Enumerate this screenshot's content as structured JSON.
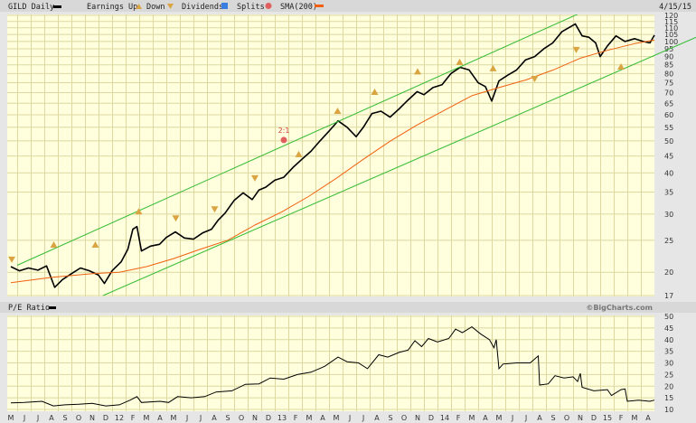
{
  "chart_data": [
    {
      "type": "line",
      "title": "GILD Daily",
      "date_label": "4/15/15",
      "legend": {
        "placement": "top",
        "items": [
          {
            "name": "GILD Daily",
            "color": "#000000",
            "symbol": "line"
          },
          {
            "name": "Earnings Up",
            "color": "#d9a441",
            "symbol": "triangle-up"
          },
          {
            "name": "Down",
            "color": "#d9a441",
            "symbol": "triangle-down"
          },
          {
            "name": "Dividends",
            "color": "#3a7fe0",
            "symbol": "square"
          },
          {
            "name": "Splits",
            "color": "#e06060",
            "symbol": "circle"
          },
          {
            "name": "SMA(200)",
            "color": "#f06010",
            "symbol": "line"
          }
        ]
      },
      "y_scale": "log",
      "ylim": [
        17,
        120
      ],
      "y_ticks": [
        17,
        20,
        25,
        30,
        35,
        40,
        45,
        50,
        55,
        60,
        65,
        70,
        75,
        80,
        85,
        90,
        95,
        100,
        105,
        110,
        115,
        120
      ],
      "grid": true,
      "series": [
        {
          "name": "GILD Daily",
          "color": "#000000",
          "points": [
            [
              "2011-05-01",
              20.8
            ],
            [
              "2011-05-20",
              20.2
            ],
            [
              "2011-06-10",
              20.6
            ],
            [
              "2011-07-01",
              20.3
            ],
            [
              "2011-07-20",
              20.9
            ],
            [
              "2011-08-08",
              18.0
            ],
            [
              "2011-08-25",
              19.0
            ],
            [
              "2011-09-15",
              19.8
            ],
            [
              "2011-10-05",
              20.6
            ],
            [
              "2011-10-25",
              20.2
            ],
            [
              "2011-11-15",
              19.6
            ],
            [
              "2011-11-28",
              18.5
            ],
            [
              "2011-12-15",
              20.2
            ],
            [
              "2012-01-05",
              21.5
            ],
            [
              "2012-01-20",
              23.5
            ],
            [
              "2012-02-01",
              27.0
            ],
            [
              "2012-02-10",
              27.5
            ],
            [
              "2012-02-20",
              23.2
            ],
            [
              "2012-03-10",
              24.0
            ],
            [
              "2012-03-30",
              24.3
            ],
            [
              "2012-04-15",
              25.5
            ],
            [
              "2012-05-05",
              26.5
            ],
            [
              "2012-05-25",
              25.4
            ],
            [
              "2012-06-15",
              25.2
            ],
            [
              "2012-07-05",
              26.3
            ],
            [
              "2012-07-25",
              27.0
            ],
            [
              "2012-08-10",
              28.8
            ],
            [
              "2012-08-25",
              30.2
            ],
            [
              "2012-09-15",
              33.0
            ],
            [
              "2012-10-05",
              34.8
            ],
            [
              "2012-10-25",
              33.2
            ],
            [
              "2012-11-10",
              35.5
            ],
            [
              "2012-11-25",
              36.2
            ],
            [
              "2012-12-15",
              38.0
            ],
            [
              "2013-01-05",
              38.8
            ],
            [
              "2013-01-25",
              41.5
            ],
            [
              "2013-02-15",
              44.0
            ],
            [
              "2013-03-05",
              46.5
            ],
            [
              "2013-03-25",
              50.0
            ],
            [
              "2013-04-15",
              53.5
            ],
            [
              "2013-05-05",
              57.5
            ],
            [
              "2013-05-25",
              55.0
            ],
            [
              "2013-06-15",
              51.5
            ],
            [
              "2013-07-01",
              55.0
            ],
            [
              "2013-07-20",
              60.5
            ],
            [
              "2013-08-10",
              61.5
            ],
            [
              "2013-08-30",
              59.0
            ],
            [
              "2013-09-20",
              62.5
            ],
            [
              "2013-10-10",
              66.5
            ],
            [
              "2013-10-30",
              70.5
            ],
            [
              "2013-11-15",
              69.0
            ],
            [
              "2013-12-05",
              72.5
            ],
            [
              "2013-12-25",
              74.0
            ],
            [
              "2014-01-15",
              80.0
            ],
            [
              "2014-02-05",
              83.5
            ],
            [
              "2014-02-25",
              82.0
            ],
            [
              "2014-03-15",
              75.0
            ],
            [
              "2014-04-01",
              73.0
            ],
            [
              "2014-04-15",
              66.0
            ],
            [
              "2014-05-01",
              76.0
            ],
            [
              "2014-05-20",
              79.0
            ],
            [
              "2014-06-10",
              82.0
            ],
            [
              "2014-06-30",
              88.0
            ],
            [
              "2014-07-20",
              90.0
            ],
            [
              "2014-08-10",
              95.0
            ],
            [
              "2014-08-30",
              99.0
            ],
            [
              "2014-09-20",
              107.0
            ],
            [
              "2014-10-05",
              110.0
            ],
            [
              "2014-10-20",
              113.0
            ],
            [
              "2014-11-05",
              104.0
            ],
            [
              "2014-11-20",
              103.0
            ],
            [
              "2014-12-05",
              99.0
            ],
            [
              "2014-12-15",
              90.0
            ],
            [
              "2015-01-01",
              97.0
            ],
            [
              "2015-01-20",
              104.0
            ],
            [
              "2015-02-10",
              100.0
            ],
            [
              "2015-03-01",
              102.0
            ],
            [
              "2015-03-20",
              100.0
            ],
            [
              "2015-04-05",
              99.0
            ],
            [
              "2015-04-15",
              104.5
            ]
          ]
        },
        {
          "name": "SMA(200)",
          "color": "#f06010",
          "points": [
            [
              "2011-05-01",
              18.6
            ],
            [
              "2011-08-01",
              19.3
            ],
            [
              "2011-11-01",
              19.8
            ],
            [
              "2012-01-01",
              20.0
            ],
            [
              "2012-03-01",
              20.8
            ],
            [
              "2012-05-01",
              22.0
            ],
            [
              "2012-07-01",
              23.5
            ],
            [
              "2012-09-01",
              25.0
            ],
            [
              "2012-11-01",
              27.8
            ],
            [
              "2013-01-01",
              30.5
            ],
            [
              "2013-03-01",
              34.0
            ],
            [
              "2013-05-01",
              38.5
            ],
            [
              "2013-07-01",
              44.0
            ],
            [
              "2013-09-01",
              50.0
            ],
            [
              "2013-11-01",
              56.0
            ],
            [
              "2014-01-01",
              62.0
            ],
            [
              "2014-03-01",
              68.5
            ],
            [
              "2014-05-01",
              72.5
            ],
            [
              "2014-07-01",
              76.5
            ],
            [
              "2014-09-01",
              82.0
            ],
            [
              "2014-11-01",
              89.0
            ],
            [
              "2015-01-01",
              94.0
            ],
            [
              "2015-03-01",
              98.5
            ],
            [
              "2015-04-15",
              101.0
            ]
          ]
        },
        {
          "name": "upper-channel",
          "color": "#33bb33",
          "points": [
            [
              "2011-05-15",
              21.0
            ],
            [
              "2014-10-25",
              121.0
            ]
          ]
        },
        {
          "name": "lower-channel",
          "color": "#33bb33",
          "points": [
            [
              "2011-11-25",
              17.0
            ],
            [
              "2015-09-25",
              113.0
            ]
          ]
        }
      ],
      "markers": [
        {
          "type": "earnings-down",
          "date": "2011-05-03",
          "value": 21.9
        },
        {
          "type": "earnings-up",
          "date": "2011-08-06",
          "value": 24.2
        },
        {
          "type": "earnings-up",
          "date": "2011-11-08",
          "value": 24.2
        },
        {
          "type": "earnings-up",
          "date": "2012-02-14",
          "value": 30.5
        },
        {
          "type": "earnings-down",
          "date": "2012-05-06",
          "value": 29.2
        },
        {
          "type": "earnings-down",
          "date": "2012-08-02",
          "value": 31.1
        },
        {
          "type": "earnings-down",
          "date": "2012-11-01",
          "value": 38.6
        },
        {
          "type": "earnings-up",
          "date": "2013-02-08",
          "value": 45.5
        },
        {
          "type": "earnings-up",
          "date": "2013-05-04",
          "value": 61.5
        },
        {
          "type": "earnings-up",
          "date": "2013-07-26",
          "value": 70.2
        },
        {
          "type": "earnings-up",
          "date": "2013-11-01",
          "value": 81.0
        },
        {
          "type": "earnings-up",
          "date": "2014-02-04",
          "value": 86.5
        },
        {
          "type": "earnings-up",
          "date": "2014-04-18",
          "value": 82.8
        },
        {
          "type": "earnings-down",
          "date": "2014-07-20",
          "value": 77.2
        },
        {
          "type": "earnings-down",
          "date": "2014-10-22",
          "value": 94.5
        },
        {
          "type": "earnings-up",
          "date": "2015-02-01",
          "value": 83.8
        },
        {
          "type": "split",
          "date": "2013-01-05",
          "value": 50.3,
          "label": "2:1"
        }
      ]
    },
    {
      "type": "line",
      "title": "P/E Ratio",
      "credit": "©BigCharts.com",
      "ylim": [
        10,
        50
      ],
      "y_ticks": [
        10,
        15,
        20,
        25,
        30,
        35,
        40,
        45,
        50
      ],
      "grid": true,
      "series": [
        {
          "name": "P/E Ratio",
          "color": "#000000",
          "points": [
            [
              "2011-05-01",
              12.8
            ],
            [
              "2011-06-01",
              13.0
            ],
            [
              "2011-07-10",
              13.5
            ],
            [
              "2011-08-05",
              11.5
            ],
            [
              "2011-09-01",
              12.0
            ],
            [
              "2011-10-01",
              12.2
            ],
            [
              "2011-11-01",
              12.6
            ],
            [
              "2011-12-01",
              11.5
            ],
            [
              "2012-01-01",
              12.0
            ],
            [
              "2012-01-25",
              14.0
            ],
            [
              "2012-02-10",
              15.5
            ],
            [
              "2012-02-20",
              13.0
            ],
            [
              "2012-04-01",
              13.5
            ],
            [
              "2012-04-20",
              13.0
            ],
            [
              "2012-05-10",
              15.5
            ],
            [
              "2012-06-10",
              15.0
            ],
            [
              "2012-07-10",
              15.5
            ],
            [
              "2012-08-05",
              17.5
            ],
            [
              "2012-09-10",
              18.0
            ],
            [
              "2012-10-10",
              20.8
            ],
            [
              "2012-11-10",
              21.0
            ],
            [
              "2012-12-05",
              23.5
            ],
            [
              "2013-01-05",
              23.0
            ],
            [
              "2013-02-05",
              25.0
            ],
            [
              "2013-03-05",
              26.0
            ],
            [
              "2013-04-05",
              28.5
            ],
            [
              "2013-05-05",
              32.5
            ],
            [
              "2013-05-25",
              30.5
            ],
            [
              "2013-06-20",
              30.0
            ],
            [
              "2013-07-10",
              27.5
            ],
            [
              "2013-08-05",
              33.5
            ],
            [
              "2013-08-25",
              32.5
            ],
            [
              "2013-09-20",
              34.5
            ],
            [
              "2013-10-10",
              35.5
            ],
            [
              "2013-10-25",
              39.5
            ],
            [
              "2013-11-10",
              37.0
            ],
            [
              "2013-11-25",
              40.5
            ],
            [
              "2013-12-15",
              39.0
            ],
            [
              "2014-01-10",
              40.5
            ],
            [
              "2014-01-25",
              44.5
            ],
            [
              "2014-02-10",
              43.0
            ],
            [
              "2014-03-01",
              45.5
            ],
            [
              "2014-03-20",
              42.5
            ],
            [
              "2014-04-10",
              40.0
            ],
            [
              "2014-04-20",
              36.5
            ],
            [
              "2014-04-25",
              40.0
            ],
            [
              "2014-05-01",
              27.5
            ],
            [
              "2014-05-10",
              29.5
            ],
            [
              "2014-06-10",
              30.0
            ],
            [
              "2014-07-10",
              30.0
            ],
            [
              "2014-07-28",
              33.0
            ],
            [
              "2014-08-01",
              20.5
            ],
            [
              "2014-08-20",
              21.0
            ],
            [
              "2014-09-05",
              24.5
            ],
            [
              "2014-09-25",
              23.5
            ],
            [
              "2014-10-15",
              24.0
            ],
            [
              "2014-10-25",
              22.0
            ],
            [
              "2014-11-01",
              25.5
            ],
            [
              "2014-11-05",
              19.5
            ],
            [
              "2014-12-01",
              18.0
            ],
            [
              "2015-01-01",
              18.5
            ],
            [
              "2015-01-10",
              16.0
            ],
            [
              "2015-02-01",
              18.5
            ],
            [
              "2015-02-10",
              18.8
            ],
            [
              "2015-02-15",
              13.5
            ],
            [
              "2015-03-10",
              14.0
            ],
            [
              "2015-04-05",
              13.5
            ],
            [
              "2015-04-15",
              14.0
            ]
          ]
        }
      ]
    }
  ],
  "x_axis": {
    "tick_labels": [
      "M",
      "J",
      "J",
      "A",
      "S",
      "O",
      "N",
      "D",
      "12",
      "F",
      "M",
      "A",
      "M",
      "J",
      "J",
      "A",
      "S",
      "O",
      "N",
      "D",
      "13",
      "F",
      "M",
      "A",
      "M",
      "J",
      "J",
      "A",
      "S",
      "O",
      "N",
      "D",
      "14",
      "F",
      "M",
      "A",
      "M",
      "J",
      "J",
      "A",
      "S",
      "O",
      "N",
      "D",
      "15",
      "F",
      "M",
      "A"
    ]
  },
  "colors": {
    "plot_bg": "#ffffdd",
    "grid": "#dcd8a0",
    "frame": "#e6e6e6",
    "header_bar": "#d8d8d8"
  }
}
